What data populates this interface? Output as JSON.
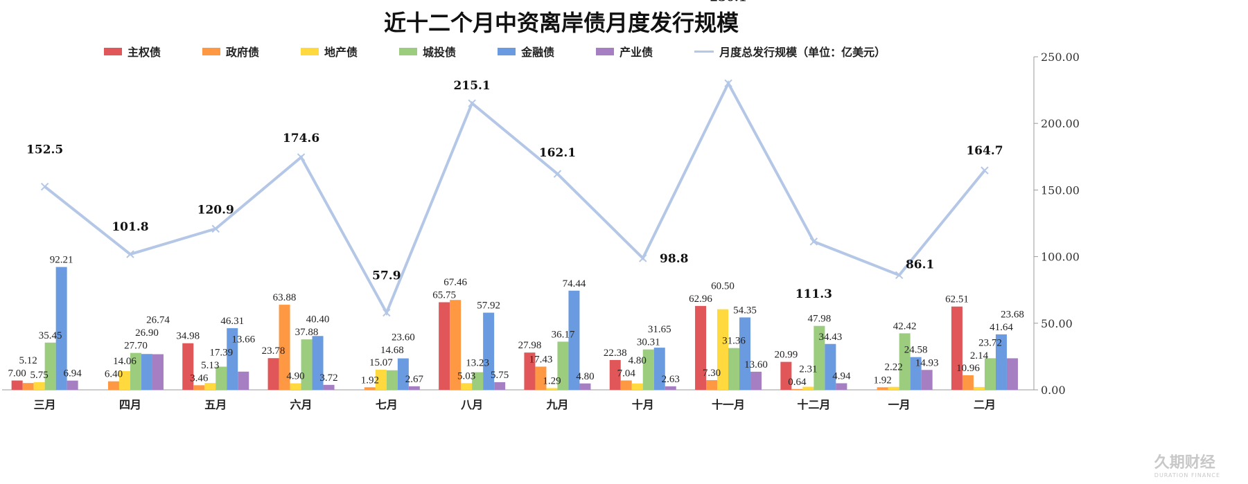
{
  "chart_data": {
    "type": "bar",
    "title": "近十二个月中资离岸债月度发行规模",
    "categories": [
      "三月",
      "四月",
      "五月",
      "六月",
      "七月",
      "八月",
      "九月",
      "十月",
      "十一月",
      "十二月",
      "一月",
      "二月"
    ],
    "series": [
      {
        "name": "主权债",
        "color": "#e15759",
        "values": [
          7.0,
          null,
          34.98,
          23.78,
          null,
          65.75,
          27.98,
          22.38,
          62.96,
          20.99,
          null,
          62.51
        ]
      },
      {
        "name": "政府债",
        "color": "#ff9843",
        "values": [
          5.12,
          6.4,
          3.46,
          63.88,
          1.92,
          67.46,
          17.43,
          7.04,
          7.3,
          0.64,
          1.92,
          10.96
        ]
      },
      {
        "name": "地产债",
        "color": "#ffd93d",
        "values": [
          5.75,
          14.06,
          5.13,
          4.9,
          15.07,
          5.03,
          1.29,
          4.8,
          60.5,
          2.31,
          2.22,
          2.14
        ]
      },
      {
        "name": "城投债",
        "color": "#9ccc7e",
        "values": [
          35.45,
          27.7,
          17.39,
          37.88,
          14.68,
          13.23,
          36.17,
          30.31,
          31.36,
          47.98,
          42.42,
          23.72
        ]
      },
      {
        "name": "金融债",
        "color": "#6a9ae0",
        "values": [
          92.21,
          26.9,
          46.31,
          40.4,
          23.6,
          57.92,
          74.44,
          31.65,
          54.35,
          34.43,
          24.58,
          41.64
        ]
      },
      {
        "name": "产业债",
        "color": "#a57fc2",
        "values": [
          6.94,
          26.74,
          13.66,
          3.72,
          2.67,
          5.75,
          4.8,
          2.63,
          13.6,
          4.94,
          14.93,
          23.68
        ]
      }
    ],
    "line_series": {
      "name": "月度总发行规模（单位：亿美元）",
      "color": "#b4c7e7",
      "values": [
        152.5,
        101.8,
        120.9,
        174.6,
        57.9,
        215.1,
        162.1,
        98.8,
        230.1,
        111.3,
        86.1,
        164.7
      ]
    },
    "y_axis": {
      "position": "right",
      "ylim": [
        0,
        250
      ],
      "ticks": [
        "0.00",
        "50.00",
        "100.00",
        "150.00",
        "200.00",
        "250.00"
      ]
    },
    "legend": "top",
    "grid": false
  },
  "watermark": {
    "line1": "久期财经",
    "line2": "DURATION FINANCE"
  }
}
